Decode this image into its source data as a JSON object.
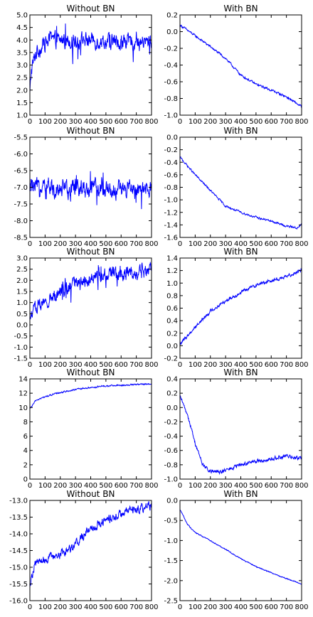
{
  "chart_data": [
    {
      "type": "line",
      "title": "Without BN",
      "xlim": [
        0,
        800
      ],
      "ylim": [
        1.0,
        5.0
      ],
      "x_ticks": [
        "0",
        "100",
        "200",
        "300",
        "400",
        "500",
        "600",
        "700",
        "800"
      ],
      "y_ticks": [
        "1.0",
        "1.5",
        "2.0",
        "2.5",
        "3.0",
        "3.5",
        "4.0",
        "4.5",
        "5.0"
      ],
      "series": [
        {
          "color": "#0000ff",
          "trend": [
            [
              0,
              1.8
            ],
            [
              10,
              2.8
            ],
            [
              40,
              3.5
            ],
            [
              100,
              3.9
            ],
            [
              200,
              4.0
            ],
            [
              400,
              4.0
            ],
            [
              600,
              3.9
            ],
            [
              800,
              3.9
            ]
          ],
          "noise": 0.35
        }
      ]
    },
    {
      "type": "line",
      "title": "With BN",
      "xlim": [
        0,
        800
      ],
      "ylim": [
        -1.0,
        0.2
      ],
      "x_ticks": [
        "0",
        "100",
        "200",
        "300",
        "400",
        "500",
        "600",
        "700",
        "800"
      ],
      "y_ticks": [
        "-1.0",
        "-0.8",
        "-0.6",
        "-0.4",
        "-0.2",
        "0.0",
        "0.2"
      ],
      "series": [
        {
          "color": "#0000ff",
          "trend": [
            [
              0,
              0.08
            ],
            [
              100,
              -0.05
            ],
            [
              200,
              -0.18
            ],
            [
              300,
              -0.32
            ],
            [
              400,
              -0.52
            ],
            [
              500,
              -0.63
            ],
            [
              600,
              -0.7
            ],
            [
              700,
              -0.78
            ],
            [
              800,
              -0.9
            ]
          ],
          "noise": 0.015
        }
      ]
    },
    {
      "type": "line",
      "title": "Without BN",
      "xlim": [
        0,
        800
      ],
      "ylim": [
        -8.5,
        -5.5
      ],
      "x_ticks": [
        "0",
        "100",
        "200",
        "300",
        "400",
        "500",
        "600",
        "700",
        "800"
      ],
      "y_ticks": [
        "-8.5",
        "-8.0",
        "-7.5",
        "-7.0",
        "-6.5",
        "-6.0",
        "-5.5"
      ],
      "series": [
        {
          "color": "#0000ff",
          "trend": [
            [
              0,
              -7.0
            ],
            [
              800,
              -7.1
            ]
          ],
          "noise": 0.3
        }
      ]
    },
    {
      "type": "line",
      "title": "With BN",
      "xlim": [
        0,
        800
      ],
      "ylim": [
        -1.6,
        0.0
      ],
      "x_ticks": [
        "0",
        "100",
        "200",
        "300",
        "400",
        "500",
        "600",
        "700",
        "800"
      ],
      "y_ticks": [
        "-1.6",
        "-1.4",
        "-1.2",
        "-1.0",
        "-0.8",
        "-0.6",
        "-0.4",
        "-0.2",
        "0.0"
      ],
      "series": [
        {
          "color": "#0000ff",
          "trend": [
            [
              0,
              -0.32
            ],
            [
              100,
              -0.6
            ],
            [
              200,
              -0.85
            ],
            [
              300,
              -1.1
            ],
            [
              400,
              -1.2
            ],
            [
              500,
              -1.28
            ],
            [
              600,
              -1.34
            ],
            [
              700,
              -1.42
            ],
            [
              780,
              -1.45
            ],
            [
              800,
              -1.38
            ]
          ],
          "noise": 0.018
        }
      ]
    },
    {
      "type": "line",
      "title": "Without BN",
      "xlim": [
        0,
        800
      ],
      "ylim": [
        -1.5,
        3.0
      ],
      "x_ticks": [
        "0",
        "100",
        "200",
        "300",
        "400",
        "500",
        "600",
        "700",
        "800"
      ],
      "y_ticks": [
        "-1.5",
        "-1.0",
        "-0.5",
        "0.0",
        "0.5",
        "1.0",
        "1.5",
        "2.0",
        "2.5",
        "3.0"
      ],
      "series": [
        {
          "color": "#0000ff",
          "trend": [
            [
              0,
              0.2
            ],
            [
              20,
              0.7
            ],
            [
              100,
              1.0
            ],
            [
              200,
              1.5
            ],
            [
              300,
              1.9
            ],
            [
              400,
              2.1
            ],
            [
              500,
              2.3
            ],
            [
              600,
              2.3
            ],
            [
              700,
              2.35
            ],
            [
              800,
              2.4
            ]
          ],
          "noise": 0.35
        }
      ]
    },
    {
      "type": "line",
      "title": "With BN",
      "xlim": [
        0,
        800
      ],
      "ylim": [
        -0.2,
        1.4
      ],
      "x_ticks": [
        "0",
        "100",
        "200",
        "300",
        "400",
        "500",
        "600",
        "700",
        "800"
      ],
      "y_ticks": [
        "-0.2",
        "0.0",
        "0.2",
        "0.4",
        "0.6",
        "0.8",
        "1.0",
        "1.2",
        "1.4"
      ],
      "series": [
        {
          "color": "#0000ff",
          "trend": [
            [
              0,
              0.02
            ],
            [
              100,
              0.3
            ],
            [
              200,
              0.55
            ],
            [
              300,
              0.72
            ],
            [
              400,
              0.85
            ],
            [
              500,
              0.97
            ],
            [
              600,
              1.04
            ],
            [
              700,
              1.1
            ],
            [
              800,
              1.22
            ]
          ],
          "noise": 0.03
        }
      ]
    },
    {
      "type": "line",
      "title": "Without BN",
      "xlim": [
        0,
        800
      ],
      "ylim": [
        0,
        14
      ],
      "x_ticks": [
        "0",
        "100",
        "200",
        "300",
        "400",
        "500",
        "600",
        "700",
        "800"
      ],
      "y_ticks": [
        "0",
        "2",
        "4",
        "6",
        "8",
        "10",
        "12",
        "14"
      ],
      "series": [
        {
          "color": "#0000ff",
          "trend": [
            [
              0,
              9.8
            ],
            [
              40,
              11.0
            ],
            [
              100,
              11.5
            ],
            [
              200,
              12.1
            ],
            [
              300,
              12.5
            ],
            [
              400,
              12.8
            ],
            [
              500,
              13.0
            ],
            [
              600,
              13.1
            ],
            [
              700,
              13.2
            ],
            [
              800,
              13.3
            ]
          ],
          "noise": 0.12
        }
      ]
    },
    {
      "type": "line",
      "title": "With BN",
      "xlim": [
        0,
        800
      ],
      "ylim": [
        -1.0,
        0.4
      ],
      "x_ticks": [
        "0",
        "100",
        "200",
        "300",
        "400",
        "500",
        "600",
        "700",
        "800"
      ],
      "y_ticks": [
        "-1.0",
        "-0.8",
        "-0.6",
        "-0.4",
        "-0.2",
        "0.0",
        "0.2",
        "0.4"
      ],
      "series": [
        {
          "color": "#0000ff",
          "trend": [
            [
              0,
              0.15
            ],
            [
              50,
              -0.1
            ],
            [
              100,
              -0.5
            ],
            [
              150,
              -0.8
            ],
            [
              200,
              -0.9
            ],
            [
              250,
              -0.9
            ],
            [
              300,
              -0.88
            ],
            [
              400,
              -0.8
            ],
            [
              500,
              -0.75
            ],
            [
              600,
              -0.72
            ],
            [
              700,
              -0.68
            ],
            [
              800,
              -0.72
            ]
          ],
          "noise": 0.03
        }
      ]
    },
    {
      "type": "line",
      "title": "Without BN",
      "xlim": [
        0,
        800
      ],
      "ylim": [
        -16.0,
        -13.0
      ],
      "x_ticks": [
        "0",
        "100",
        "200",
        "300",
        "400",
        "500",
        "600",
        "700",
        "800"
      ],
      "y_ticks": [
        "-16.0",
        "-15.5",
        "-15.0",
        "-14.5",
        "-14.0",
        "-13.5",
        "-13.0"
      ],
      "series": [
        {
          "color": "#0000ff",
          "trend": [
            [
              0,
              -15.5
            ],
            [
              30,
              -14.9
            ],
            [
              100,
              -14.75
            ],
            [
              200,
              -14.6
            ],
            [
              300,
              -14.3
            ],
            [
              400,
              -13.8
            ],
            [
              500,
              -13.6
            ],
            [
              600,
              -13.4
            ],
            [
              700,
              -13.25
            ],
            [
              800,
              -13.15
            ]
          ],
          "noise": 0.15
        }
      ]
    },
    {
      "type": "line",
      "title": "With BN",
      "xlim": [
        0,
        800
      ],
      "ylim": [
        -2.5,
        0.0
      ],
      "x_ticks": [
        "0",
        "100",
        "200",
        "300",
        "400",
        "500",
        "600",
        "700",
        "800"
      ],
      "y_ticks": [
        "-2.5",
        "-2.0",
        "-1.5",
        "-1.0",
        "-0.5",
        "0.0"
      ],
      "series": [
        {
          "color": "#0000ff",
          "trend": [
            [
              0,
              -0.22
            ],
            [
              50,
              -0.6
            ],
            [
              100,
              -0.8
            ],
            [
              200,
              -1.0
            ],
            [
              300,
              -1.22
            ],
            [
              400,
              -1.45
            ],
            [
              500,
              -1.65
            ],
            [
              600,
              -1.8
            ],
            [
              700,
              -1.95
            ],
            [
              800,
              -2.08
            ]
          ],
          "noise": 0.015
        }
      ]
    }
  ]
}
